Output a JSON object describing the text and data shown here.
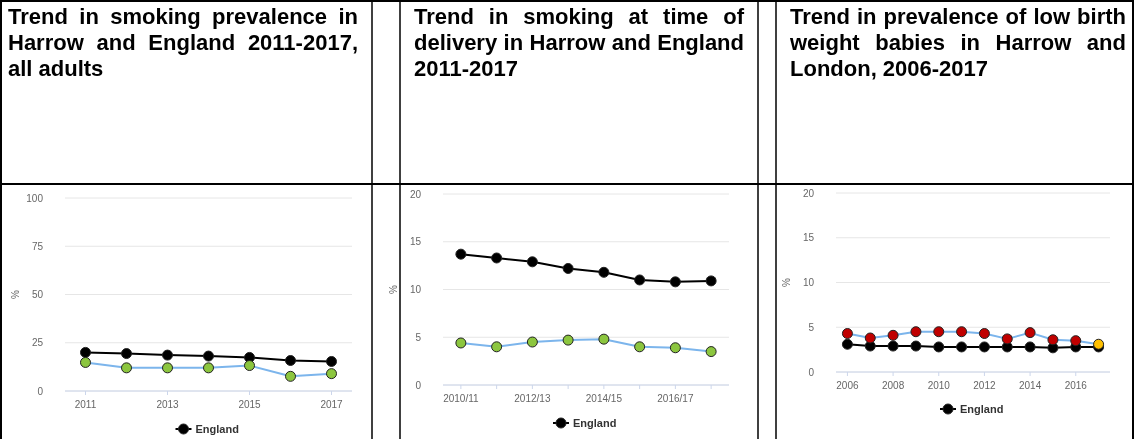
{
  "chart_data": [
    {
      "type": "line",
      "title": "Trend in smoking prevalence in Harrow and England 2011-2017, all adults",
      "ylabel": "%",
      "x": [
        2011,
        2012,
        2013,
        2014,
        2015,
        2016,
        2017
      ],
      "xlim": [
        2010.5,
        2017.5
      ],
      "xticks": [
        2011,
        2013,
        2015,
        2017
      ],
      "ylim": [
        0,
        100
      ],
      "yticks": [
        0,
        25,
        50,
        75,
        100
      ],
      "grid": "y",
      "legend": "bottom",
      "marker": "circle",
      "series": [
        {
          "color": "#7cb5ec",
          "colors": [
            "#8cc63f",
            "#8cc63f",
            "#8cc63f",
            "#8cc63f",
            "#8cc63f",
            "#8cc63f",
            "#8cc63f"
          ],
          "values": [
            14.8,
            12.0,
            12.0,
            12.0,
            13.2,
            7.6,
            9.0
          ]
        },
        {
          "name": "England",
          "color": "#000000",
          "values": [
            20.0,
            19.4,
            18.6,
            18.1,
            17.4,
            15.8,
            15.3
          ]
        }
      ]
    },
    {
      "type": "line",
      "title": "Trend in smoking at time of delivery in Harrow and England 2011-2017",
      "ylabel": "%",
      "categories": [
        "2010/11",
        null,
        "2012/13",
        null,
        "2014/15",
        null,
        "2016/17",
        null
      ],
      "ylim": [
        0,
        20
      ],
      "yticks": [
        0,
        5,
        10,
        15,
        20
      ],
      "grid": "y",
      "legend": "bottom",
      "marker": "circle",
      "series": [
        {
          "name": "England",
          "color": "#000000",
          "values": [
            13.7,
            13.3,
            12.9,
            12.2,
            11.8,
            11.0,
            10.8,
            10.9
          ]
        },
        {
          "color": "#7cb5ec",
          "colors": [
            "#8cc63f",
            "#8cc63f",
            "#8cc63f",
            "#8cc63f",
            "#8cc63f",
            "#8cc63f",
            "#8cc63f",
            "#8cc63f"
          ],
          "values": [
            4.4,
            4.0,
            4.5,
            4.7,
            4.8,
            4.0,
            3.9,
            3.5
          ]
        }
      ]
    },
    {
      "type": "line",
      "title": "Trend in prevalence of low birth weight babies in Harrow and London, 2006-2017",
      "ylabel": "%",
      "x": [
        2006,
        2007,
        2008,
        2009,
        2010,
        2011,
        2012,
        2013,
        2014,
        2015,
        2016,
        2017
      ],
      "xlim": [
        2005.5,
        2017.5
      ],
      "xticks": [
        2006,
        2008,
        2010,
        2012,
        2014,
        2016
      ],
      "ylim": [
        0,
        20
      ],
      "yticks": [
        0,
        5,
        10,
        15,
        20
      ],
      "grid": "y",
      "legend": "bottom",
      "marker": "circle",
      "series": [
        {
          "color": "#7cb5ec",
          "colors": [
            "#c00000",
            "#c00000",
            "#c00000",
            "#c00000",
            "#c00000",
            "#c00000",
            "#c00000",
            "#c00000",
            "#c00000",
            "#c00000",
            "#c00000",
            "#ffc000"
          ],
          "values": [
            4.3,
            3.8,
            4.1,
            4.5,
            4.5,
            4.5,
            4.3,
            3.7,
            4.4,
            3.6,
            3.5,
            3.1
          ]
        },
        {
          "name": "England",
          "color": "#000000",
          "values": [
            3.1,
            2.9,
            2.9,
            2.9,
            2.8,
            2.8,
            2.8,
            2.8,
            2.8,
            2.7,
            2.8,
            2.8
          ]
        }
      ]
    }
  ]
}
